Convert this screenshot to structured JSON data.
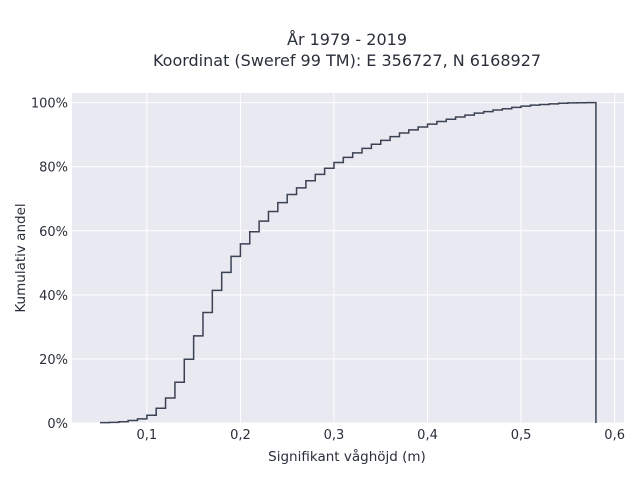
{
  "chart_data": {
    "type": "line",
    "subtype": "step-cdf",
    "title": "År 1979 - 2019",
    "subtitle": "Koordinat (Sweref 99 TM): E 356727, N 6168927",
    "xlabel": "Signifikant våghöjd (m)",
    "ylabel": "Kumulativ andel",
    "xlim": [
      0.02,
      0.61
    ],
    "ylim": [
      0,
      1.03
    ],
    "x_ticks": [
      0.1,
      0.2,
      0.3,
      0.4,
      0.5,
      0.6
    ],
    "x_tick_labels": [
      "0,1",
      "0,2",
      "0,3",
      "0,4",
      "0,5",
      "0,6"
    ],
    "y_ticks": [
      0,
      0.2,
      0.4,
      0.6,
      0.8,
      1.0
    ],
    "y_tick_labels": [
      "0%",
      "20%",
      "40%",
      "60%",
      "80%",
      "100%"
    ],
    "grid": true,
    "background": "#e9e9f1",
    "line_color": "#3a4253",
    "series": [
      {
        "x": [
          0.05,
          0.06,
          0.07,
          0.08,
          0.09,
          0.1,
          0.11,
          0.12,
          0.13,
          0.14,
          0.15,
          0.16,
          0.17,
          0.18,
          0.19,
          0.2,
          0.21,
          0.22,
          0.23,
          0.24,
          0.25,
          0.26,
          0.27,
          0.28,
          0.29,
          0.3,
          0.31,
          0.32,
          0.33,
          0.34,
          0.35,
          0.36,
          0.37,
          0.38,
          0.39,
          0.4,
          0.41,
          0.42,
          0.43,
          0.44,
          0.45,
          0.46,
          0.47,
          0.48,
          0.49,
          0.5,
          0.51,
          0.52,
          0.53,
          0.54,
          0.55,
          0.56,
          0.57,
          0.58
        ],
        "y": [
          0.001,
          0.002,
          0.004,
          0.008,
          0.013,
          0.024,
          0.046,
          0.078,
          0.127,
          0.199,
          0.272,
          0.345,
          0.414,
          0.47,
          0.52,
          0.559,
          0.597,
          0.63,
          0.66,
          0.688,
          0.713,
          0.734,
          0.756,
          0.776,
          0.795,
          0.813,
          0.829,
          0.843,
          0.857,
          0.87,
          0.882,
          0.894,
          0.905,
          0.915,
          0.924,
          0.933,
          0.941,
          0.948,
          0.955,
          0.961,
          0.967,
          0.972,
          0.977,
          0.981,
          0.985,
          0.989,
          0.992,
          0.994,
          0.996,
          0.998,
          0.999,
          0.9995,
          1.0,
          1.0
        ]
      }
    ]
  }
}
